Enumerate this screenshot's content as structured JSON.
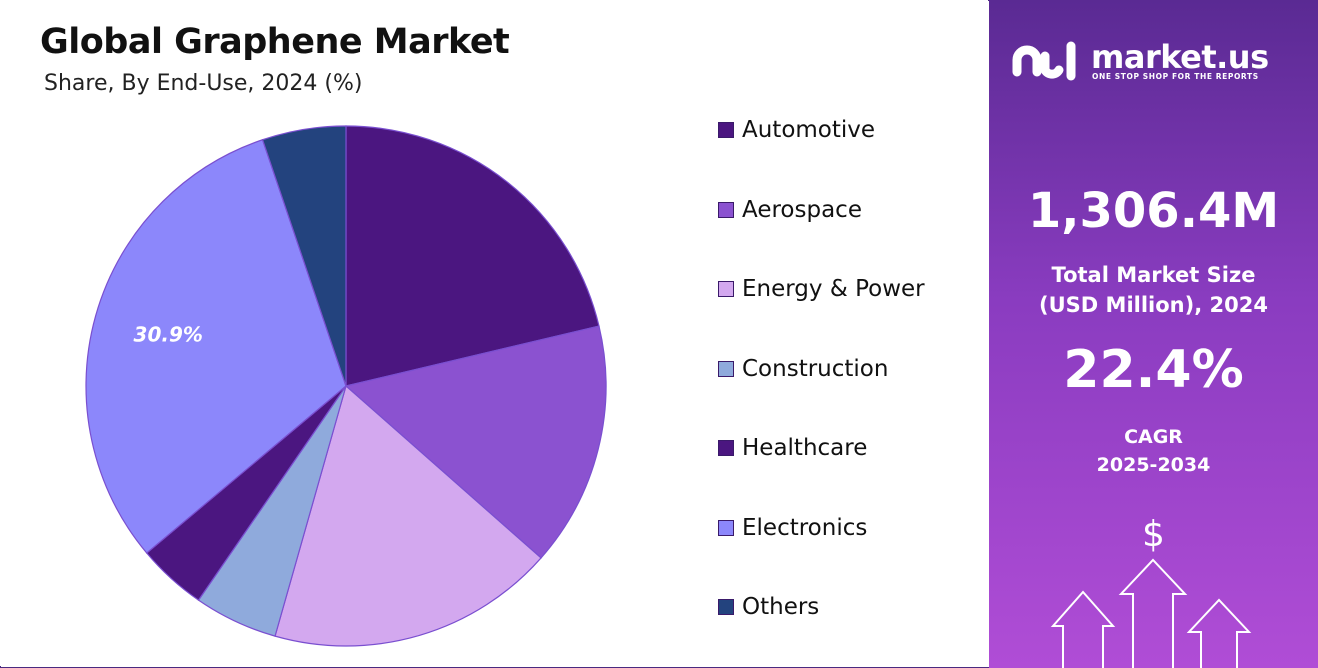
{
  "header": {
    "title": "Global Graphene Market",
    "subtitle": "Share, By End-Use, 2024 (%)"
  },
  "chart_data": {
    "type": "pie",
    "title": "Global Graphene Market",
    "subtitle": "Share, By End-Use, 2024 (%)",
    "categories": [
      "Automotive",
      "Aerospace",
      "Energy & Power",
      "Construction",
      "Healthcare",
      "Electronics",
      "Others"
    ],
    "values": [
      21.3,
      15.2,
      17.9,
      5.2,
      4.3,
      30.9,
      5.2
    ],
    "colors": [
      "#4b1680",
      "#8b52d0",
      "#d3a8ef",
      "#8faadc",
      "#4b1680",
      "#8c87fb",
      "#23437e"
    ],
    "data_labels": [
      {
        "category": "Electronics",
        "text": "30.9%"
      }
    ],
    "legend_position": "right"
  },
  "sidebar": {
    "brand": "market.us",
    "tagline": "ONE STOP SHOP FOR THE REPORTS",
    "market_size_value": "1,306.4M",
    "market_size_label_line1": "Total Market Size",
    "market_size_label_line2": "(USD Million), 2024",
    "cagr_value": "22.4%",
    "cagr_label_line1": "CAGR",
    "cagr_label_line2": "2025-2034",
    "dollar_symbol": "$",
    "icons": [
      "market-us-logo-icon",
      "growth-arrows-icon"
    ]
  }
}
